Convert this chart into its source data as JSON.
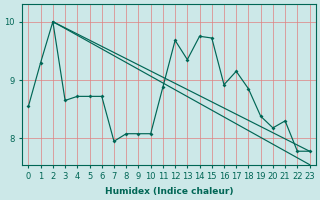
{
  "xlabel": "Humidex (Indice chaleur)",
  "bg_color": "#cce8e8",
  "grid_color": "#e08080",
  "line_color": "#006655",
  "xlim": [
    -0.5,
    23.5
  ],
  "ylim": [
    7.55,
    10.3
  ],
  "yticks": [
    8,
    9,
    10
  ],
  "xticks": [
    0,
    1,
    2,
    3,
    4,
    5,
    6,
    7,
    8,
    9,
    10,
    11,
    12,
    13,
    14,
    15,
    16,
    17,
    18,
    19,
    20,
    21,
    22,
    23
  ],
  "line1_x": [
    0,
    1,
    2,
    3,
    4,
    5,
    6,
    7,
    8,
    9,
    10,
    11,
    12,
    13,
    14,
    15,
    16,
    17,
    18,
    19,
    20,
    21,
    22,
    23
  ],
  "line1_y": [
    8.55,
    9.3,
    10.0,
    8.65,
    8.72,
    8.72,
    8.72,
    7.95,
    8.08,
    8.08,
    8.08,
    8.88,
    9.68,
    9.35,
    9.75,
    9.72,
    8.92,
    9.15,
    8.85,
    8.38,
    8.18,
    8.3,
    7.78,
    7.78
  ],
  "line2_x": [
    2,
    23
  ],
  "line2_y": [
    10.0,
    7.78
  ],
  "line3_x": [
    2,
    23
  ],
  "line3_y": [
    10.0,
    7.55
  ],
  "marker_style": "D",
  "marker_size": 2.0,
  "linewidth": 0.85
}
